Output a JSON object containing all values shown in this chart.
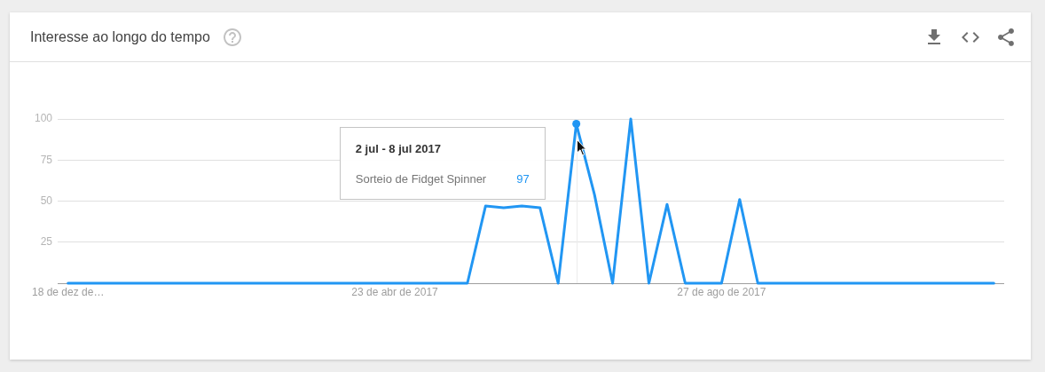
{
  "chart_data": {
    "type": "line",
    "title": "Interesse ao longo do tempo",
    "x": [
      "2016-12-18",
      "2016-12-25",
      "2017-01-01",
      "2017-01-08",
      "2017-01-15",
      "2017-01-22",
      "2017-01-29",
      "2017-02-05",
      "2017-02-12",
      "2017-02-19",
      "2017-02-26",
      "2017-03-05",
      "2017-03-12",
      "2017-03-19",
      "2017-03-26",
      "2017-04-02",
      "2017-04-09",
      "2017-04-16",
      "2017-04-23",
      "2017-04-30",
      "2017-05-07",
      "2017-05-14",
      "2017-05-21",
      "2017-05-28",
      "2017-06-04",
      "2017-06-11",
      "2017-06-18",
      "2017-06-25",
      "2017-07-02",
      "2017-07-09",
      "2017-07-16",
      "2017-07-23",
      "2017-07-30",
      "2017-08-06",
      "2017-08-13",
      "2017-08-20",
      "2017-08-27",
      "2017-09-03",
      "2017-09-10",
      "2017-09-17",
      "2017-09-24",
      "2017-10-01",
      "2017-10-08",
      "2017-10-15",
      "2017-10-22",
      "2017-10-29",
      "2017-11-05",
      "2017-11-12",
      "2017-11-19",
      "2017-11-26",
      "2017-12-03",
      "2017-12-10"
    ],
    "series": [
      {
        "name": "Sorteio de Fidget Spinner",
        "color": "#2196f3",
        "values": [
          0,
          0,
          0,
          0,
          0,
          0,
          0,
          0,
          0,
          0,
          0,
          0,
          0,
          0,
          0,
          0,
          0,
          0,
          0,
          0,
          0,
          0,
          0,
          47,
          46,
          47,
          46,
          0,
          97,
          54,
          0,
          100,
          0,
          48,
          0,
          0,
          0,
          51,
          0,
          0,
          0,
          0,
          0,
          0,
          0,
          0,
          0,
          0,
          0,
          0,
          0,
          0
        ]
      }
    ],
    "xlim": [
      "2016-12-14",
      "2017-12-14"
    ],
    "xticks": [
      {
        "value": "2016-12-18",
        "label": "18 de dez de…"
      },
      {
        "value": "2017-04-23",
        "label": "23 de abr de 2017"
      },
      {
        "value": "2017-08-27",
        "label": "27 de ago de 2017"
      }
    ],
    "ylim": [
      0,
      100
    ],
    "yticks": [
      {
        "value": 0,
        "label": null
      },
      25,
      50,
      75,
      100
    ],
    "grid": "y",
    "legend": false,
    "marker": "none",
    "line_style": "solid",
    "ref_lines": [
      {
        "axis": "x",
        "value": "2017-07-02",
        "color": "#ececec"
      }
    ],
    "annotations": [
      "2 jul - 8 jul 2017",
      "97"
    ]
  }
}
